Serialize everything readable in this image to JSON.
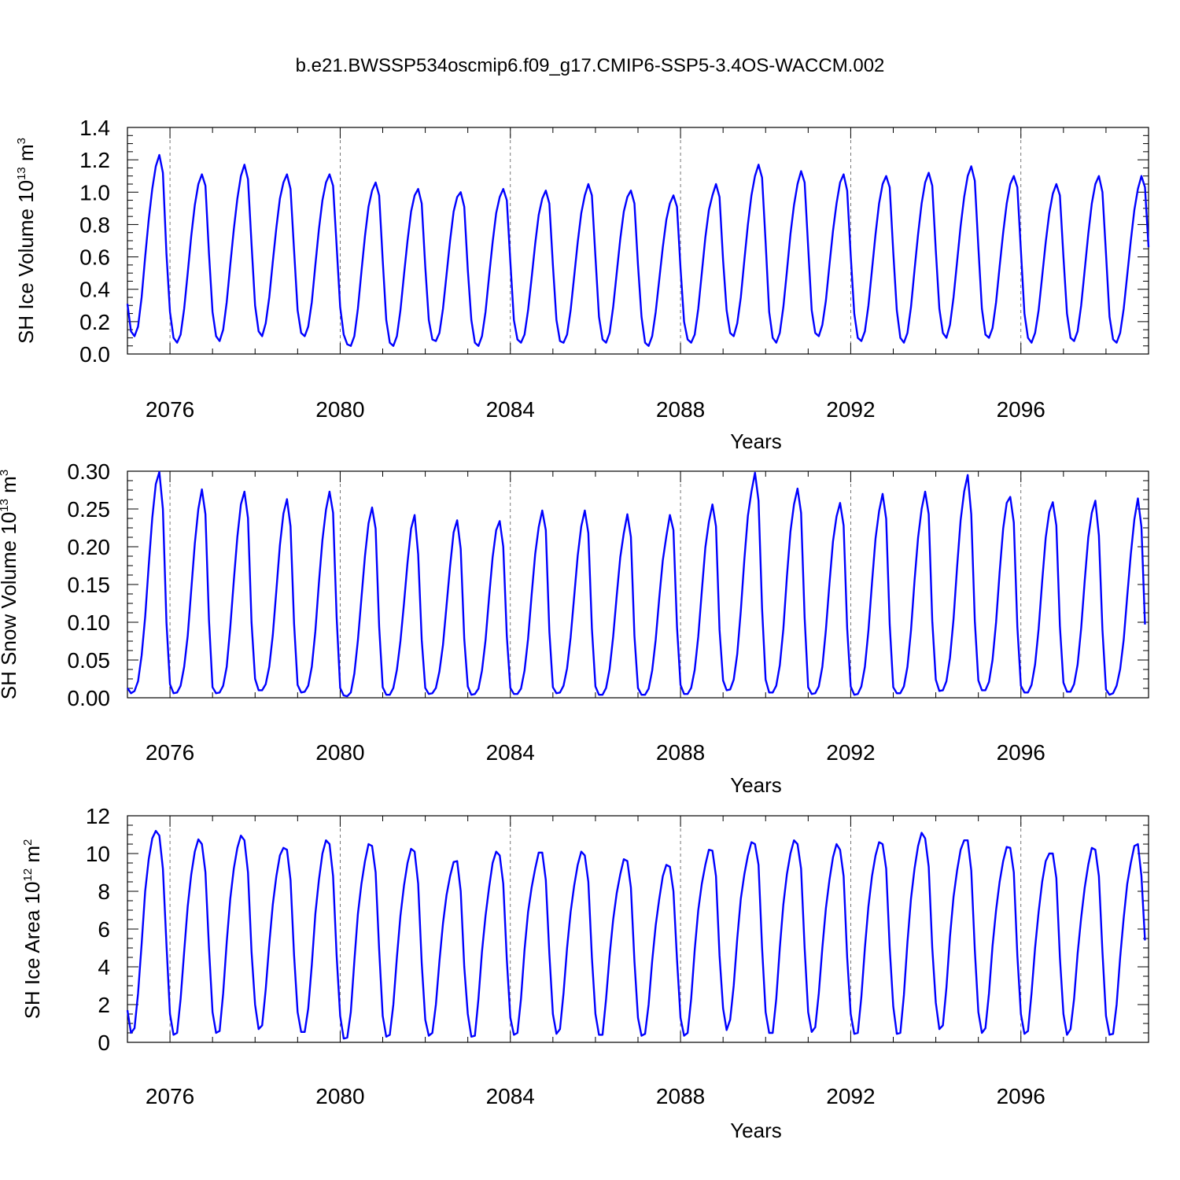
{
  "title": "b.e21.BWSSP534oscmip6.f09_g17.CMIP6-SSP5-3.4OS-WACCM.002",
  "colors": {
    "line": "#0000ff",
    "axis": "#000000",
    "refline": "#555555"
  },
  "chart_data": [
    {
      "type": "line",
      "ylabel": "SH Ice Volume 10",
      "ylabel_exp": "13",
      "ylabel_unit": " m",
      "ylabel_unit_exp": "3",
      "xlabel": "Years",
      "xlim": [
        2075.0,
        2099.0
      ],
      "ylim": [
        0.0,
        1.4
      ],
      "yticks": [
        0.0,
        0.2,
        0.4,
        0.6,
        0.8,
        1.0,
        1.2,
        1.4
      ],
      "ytick_labels": [
        "0.0",
        "0.2",
        "0.4",
        "0.6",
        "0.8",
        "1.0",
        "1.2",
        "1.4"
      ],
      "xticks": [
        2076,
        2080,
        2084,
        2088,
        2092,
        2096
      ],
      "xtick_labels": [
        "2076",
        "2080",
        "2084",
        "2088",
        "2092",
        "2096"
      ],
      "grid": false,
      "start_year": 2075,
      "series": [
        {
          "values": [
            0.31,
            0.14,
            0.11,
            0.17,
            0.35,
            0.6,
            0.83,
            1.02,
            1.16,
            1.23,
            1.12,
            0.62,
            0.26,
            0.1,
            0.07,
            0.12,
            0.28,
            0.5,
            0.73,
            0.92,
            1.05,
            1.11,
            1.04,
            0.62,
            0.26,
            0.11,
            0.08,
            0.15,
            0.32,
            0.55,
            0.77,
            0.96,
            1.1,
            1.17,
            1.08,
            0.68,
            0.3,
            0.14,
            0.11,
            0.19,
            0.35,
            0.57,
            0.78,
            0.96,
            1.06,
            1.11,
            1.02,
            0.64,
            0.27,
            0.13,
            0.11,
            0.17,
            0.32,
            0.55,
            0.77,
            0.95,
            1.06,
            1.11,
            1.04,
            0.67,
            0.29,
            0.12,
            0.06,
            0.05,
            0.11,
            0.28,
            0.51,
            0.73,
            0.91,
            1.01,
            1.06,
            0.98,
            0.58,
            0.21,
            0.07,
            0.05,
            0.11,
            0.27,
            0.49,
            0.7,
            0.88,
            0.98,
            1.02,
            0.93,
            0.54,
            0.21,
            0.09,
            0.08,
            0.13,
            0.28,
            0.49,
            0.7,
            0.88,
            0.97,
            1.0,
            0.91,
            0.52,
            0.21,
            0.07,
            0.05,
            0.11,
            0.26,
            0.48,
            0.69,
            0.87,
            0.97,
            1.02,
            0.95,
            0.57,
            0.21,
            0.09,
            0.07,
            0.12,
            0.27,
            0.47,
            0.68,
            0.86,
            0.96,
            1.01,
            0.93,
            0.55,
            0.21,
            0.08,
            0.07,
            0.12,
            0.27,
            0.48,
            0.69,
            0.87,
            0.98,
            1.05,
            0.98,
            0.6,
            0.23,
            0.09,
            0.07,
            0.13,
            0.29,
            0.5,
            0.71,
            0.88,
            0.97,
            1.01,
            0.93,
            0.55,
            0.23,
            0.07,
            0.05,
            0.11,
            0.26,
            0.46,
            0.66,
            0.83,
            0.93,
            0.98,
            0.91,
            0.53,
            0.2,
            0.09,
            0.07,
            0.12,
            0.28,
            0.5,
            0.72,
            0.89,
            0.98,
            1.05,
            0.97,
            0.58,
            0.27,
            0.13,
            0.11,
            0.19,
            0.35,
            0.58,
            0.8,
            0.98,
            1.1,
            1.17,
            1.09,
            0.69,
            0.26,
            0.1,
            0.07,
            0.13,
            0.29,
            0.51,
            0.74,
            0.92,
            1.05,
            1.13,
            1.06,
            0.66,
            0.27,
            0.13,
            0.11,
            0.18,
            0.33,
            0.55,
            0.76,
            0.93,
            1.06,
            1.11,
            1.01,
            0.61,
            0.25,
            0.1,
            0.08,
            0.14,
            0.3,
            0.52,
            0.74,
            0.93,
            1.05,
            1.1,
            1.03,
            0.63,
            0.27,
            0.1,
            0.07,
            0.13,
            0.29,
            0.52,
            0.74,
            0.93,
            1.06,
            1.12,
            1.04,
            0.64,
            0.28,
            0.13,
            0.1,
            0.18,
            0.35,
            0.57,
            0.79,
            0.97,
            1.1,
            1.16,
            1.07,
            0.66,
            0.28,
            0.12,
            0.1,
            0.16,
            0.32,
            0.54,
            0.75,
            0.93,
            1.05,
            1.1,
            1.03,
            0.64,
            0.25,
            0.1,
            0.07,
            0.13,
            0.27,
            0.48,
            0.69,
            0.87,
            0.99,
            1.05,
            0.98,
            0.6,
            0.25,
            0.1,
            0.08,
            0.14,
            0.3,
            0.52,
            0.74,
            0.93,
            1.05,
            1.1,
            1.0,
            0.62,
            0.23,
            0.09,
            0.07,
            0.13,
            0.28,
            0.49,
            0.7,
            0.89,
            1.02,
            1.1,
            1.03,
            0.66
          ]
        }
      ]
    },
    {
      "type": "line",
      "ylabel": "SH Snow Volume 10",
      "ylabel_exp": "13",
      "ylabel_unit": " m",
      "ylabel_unit_exp": "3",
      "xlabel": "Years",
      "xlim": [
        2075.0,
        2099.0
      ],
      "ylim": [
        0.0,
        0.3
      ],
      "yticks": [
        0.0,
        0.05,
        0.1,
        0.15,
        0.2,
        0.25,
        0.3
      ],
      "ytick_labels": [
        "0.00",
        "0.05",
        "0.10",
        "0.15",
        "0.20",
        "0.25",
        "0.30"
      ],
      "xticks": [
        2076,
        2080,
        2084,
        2088,
        2092,
        2096
      ],
      "xtick_labels": [
        "2076",
        "2080",
        "2084",
        "2088",
        "2092",
        "2096"
      ],
      "grid": false,
      "start_year": 2075,
      "series": [
        {
          "values": [
            0.013,
            0.006,
            0.009,
            0.022,
            0.056,
            0.107,
            0.175,
            0.238,
            0.283,
            0.299,
            0.25,
            0.1,
            0.018,
            0.006,
            0.007,
            0.016,
            0.041,
            0.082,
            0.143,
            0.204,
            0.25,
            0.276,
            0.243,
            0.103,
            0.014,
            0.006,
            0.007,
            0.016,
            0.041,
            0.093,
            0.155,
            0.213,
            0.256,
            0.273,
            0.238,
            0.1,
            0.025,
            0.01,
            0.01,
            0.018,
            0.041,
            0.083,
            0.142,
            0.202,
            0.244,
            0.263,
            0.227,
            0.098,
            0.017,
            0.007,
            0.008,
            0.016,
            0.041,
            0.088,
            0.152,
            0.209,
            0.249,
            0.273,
            0.245,
            0.107,
            0.013,
            0.003,
            0.002,
            0.007,
            0.032,
            0.076,
            0.132,
            0.188,
            0.231,
            0.252,
            0.224,
            0.094,
            0.014,
            0.004,
            0.004,
            0.013,
            0.037,
            0.075,
            0.125,
            0.179,
            0.224,
            0.242,
            0.19,
            0.077,
            0.013,
            0.005,
            0.006,
            0.013,
            0.035,
            0.07,
            0.122,
            0.174,
            0.219,
            0.235,
            0.197,
            0.078,
            0.015,
            0.004,
            0.005,
            0.012,
            0.036,
            0.076,
            0.133,
            0.186,
            0.222,
            0.234,
            0.2,
            0.082,
            0.013,
            0.005,
            0.005,
            0.012,
            0.036,
            0.078,
            0.136,
            0.19,
            0.226,
            0.248,
            0.222,
            0.088,
            0.014,
            0.006,
            0.007,
            0.016,
            0.039,
            0.08,
            0.134,
            0.188,
            0.227,
            0.248,
            0.218,
            0.092,
            0.015,
            0.004,
            0.004,
            0.013,
            0.038,
            0.081,
            0.135,
            0.186,
            0.218,
            0.243,
            0.213,
            0.082,
            0.013,
            0.004,
            0.004,
            0.012,
            0.036,
            0.077,
            0.132,
            0.182,
            0.214,
            0.242,
            0.222,
            0.094,
            0.017,
            0.005,
            0.005,
            0.013,
            0.037,
            0.081,
            0.141,
            0.199,
            0.233,
            0.256,
            0.227,
            0.09,
            0.023,
            0.01,
            0.011,
            0.024,
            0.058,
            0.115,
            0.183,
            0.241,
            0.273,
            0.298,
            0.261,
            0.118,
            0.024,
            0.007,
            0.007,
            0.016,
            0.043,
            0.091,
            0.16,
            0.22,
            0.256,
            0.277,
            0.245,
            0.106,
            0.014,
            0.005,
            0.006,
            0.015,
            0.041,
            0.09,
            0.151,
            0.207,
            0.24,
            0.258,
            0.228,
            0.092,
            0.015,
            0.004,
            0.005,
            0.015,
            0.041,
            0.089,
            0.152,
            0.211,
            0.247,
            0.27,
            0.237,
            0.097,
            0.014,
            0.006,
            0.006,
            0.015,
            0.041,
            0.089,
            0.155,
            0.212,
            0.25,
            0.273,
            0.243,
            0.102,
            0.024,
            0.009,
            0.01,
            0.022,
            0.053,
            0.104,
            0.173,
            0.235,
            0.273,
            0.295,
            0.243,
            0.102,
            0.023,
            0.01,
            0.01,
            0.021,
            0.05,
            0.1,
            0.166,
            0.224,
            0.258,
            0.266,
            0.232,
            0.094,
            0.016,
            0.007,
            0.007,
            0.017,
            0.044,
            0.091,
            0.154,
            0.212,
            0.246,
            0.259,
            0.228,
            0.095,
            0.02,
            0.008,
            0.008,
            0.018,
            0.044,
            0.092,
            0.155,
            0.212,
            0.245,
            0.261,
            0.215,
            0.09,
            0.011,
            0.004,
            0.006,
            0.016,
            0.038,
            0.077,
            0.135,
            0.19,
            0.236,
            0.264,
            0.226,
            0.097
          ]
        }
      ]
    },
    {
      "type": "line",
      "ylabel": "SH Ice Area 10",
      "ylabel_exp": "12",
      "ylabel_unit": " m",
      "ylabel_unit_exp": "2",
      "xlabel": "Years",
      "xlim": [
        2075.0,
        2099.0
      ],
      "ylim": [
        0,
        12
      ],
      "yticks": [
        0,
        2,
        4,
        6,
        8,
        10,
        12
      ],
      "ytick_labels": [
        "0",
        "2",
        "4",
        "6",
        "8",
        "10",
        "12"
      ],
      "xticks": [
        2076,
        2080,
        2084,
        2088,
        2092,
        2096
      ],
      "xtick_labels": [
        "2076",
        "2080",
        "2084",
        "2088",
        "2092",
        "2096"
      ],
      "grid": false,
      "start_year": 2075,
      "series": [
        {
          "values": [
            1.7,
            0.5,
            0.75,
            2.6,
            5.2,
            8.0,
            9.7,
            10.8,
            11.2,
            10.95,
            9.2,
            5.2,
            1.5,
            0.4,
            0.5,
            2.3,
            4.8,
            7.2,
            8.9,
            10.1,
            10.75,
            10.5,
            9.0,
            5.0,
            1.6,
            0.5,
            0.6,
            2.6,
            5.3,
            7.6,
            9.2,
            10.3,
            10.95,
            10.7,
            9.0,
            4.8,
            2.0,
            0.7,
            0.9,
            2.8,
            5.2,
            7.3,
            8.8,
            9.9,
            10.3,
            10.2,
            8.6,
            4.6,
            1.6,
            0.55,
            0.55,
            1.8,
            4.1,
            6.8,
            8.6,
            10.0,
            10.7,
            10.5,
            8.8,
            4.6,
            1.4,
            0.2,
            0.25,
            1.6,
            4.3,
            6.8,
            8.4,
            9.6,
            10.5,
            10.4,
            9.0,
            4.9,
            1.4,
            0.3,
            0.4,
            2.0,
            4.5,
            6.7,
            8.3,
            9.5,
            10.25,
            10.1,
            8.4,
            4.2,
            1.2,
            0.35,
            0.5,
            2.0,
            4.3,
            6.3,
            7.8,
            8.8,
            9.55,
            9.6,
            8.0,
            4.0,
            1.5,
            0.3,
            0.35,
            2.3,
            4.8,
            6.7,
            8.2,
            9.5,
            10.1,
            9.9,
            8.4,
            4.4,
            1.3,
            0.4,
            0.5,
            2.3,
            4.9,
            6.9,
            8.2,
            9.2,
            10.05,
            10.05,
            8.6,
            4.7,
            1.5,
            0.45,
            0.7,
            2.6,
            5.0,
            6.9,
            8.3,
            9.4,
            10.1,
            9.9,
            8.5,
            4.5,
            1.5,
            0.4,
            0.4,
            2.3,
            4.6,
            6.5,
            7.9,
            8.9,
            9.7,
            9.6,
            8.2,
            4.3,
            1.3,
            0.35,
            0.45,
            2.0,
            4.3,
            6.2,
            7.6,
            8.8,
            9.4,
            9.3,
            8.0,
            4.4,
            1.3,
            0.35,
            0.5,
            2.3,
            4.9,
            7.0,
            8.4,
            9.4,
            10.2,
            10.15,
            8.8,
            4.6,
            1.8,
            0.65,
            1.2,
            3.0,
            5.5,
            7.6,
            8.9,
            9.9,
            10.6,
            10.5,
            9.4,
            5.0,
            1.6,
            0.5,
            0.5,
            2.3,
            5.0,
            7.3,
            8.9,
            10.0,
            10.7,
            10.5,
            9.2,
            5.0,
            1.6,
            0.55,
            0.8,
            2.6,
            5.0,
            7.1,
            8.6,
            9.8,
            10.5,
            10.2,
            8.8,
            4.5,
            1.5,
            0.45,
            0.5,
            2.4,
            5.0,
            7.2,
            8.8,
            9.9,
            10.6,
            10.5,
            9.2,
            5.0,
            1.9,
            0.45,
            0.5,
            2.5,
            5.3,
            7.6,
            9.2,
            10.4,
            11.1,
            10.8,
            9.3,
            5.0,
            2.1,
            0.7,
            0.9,
            2.9,
            5.6,
            7.7,
            9.1,
            10.2,
            10.7,
            10.7,
            9.1,
            4.9,
            1.6,
            0.5,
            0.75,
            2.6,
            5.1,
            7.0,
            8.5,
            9.6,
            10.35,
            10.3,
            9.0,
            4.6,
            1.5,
            0.45,
            0.6,
            2.6,
            5.0,
            6.9,
            8.5,
            9.6,
            10.0,
            10.0,
            8.7,
            4.5,
            1.5,
            0.4,
            0.7,
            2.3,
            4.7,
            6.6,
            8.2,
            9.4,
            10.3,
            10.2,
            8.8,
            4.8,
            1.4,
            0.4,
            0.45,
            2.0,
            4.5,
            6.6,
            8.4,
            9.5,
            10.4,
            10.5,
            8.8,
            5.4
          ]
        }
      ]
    }
  ]
}
